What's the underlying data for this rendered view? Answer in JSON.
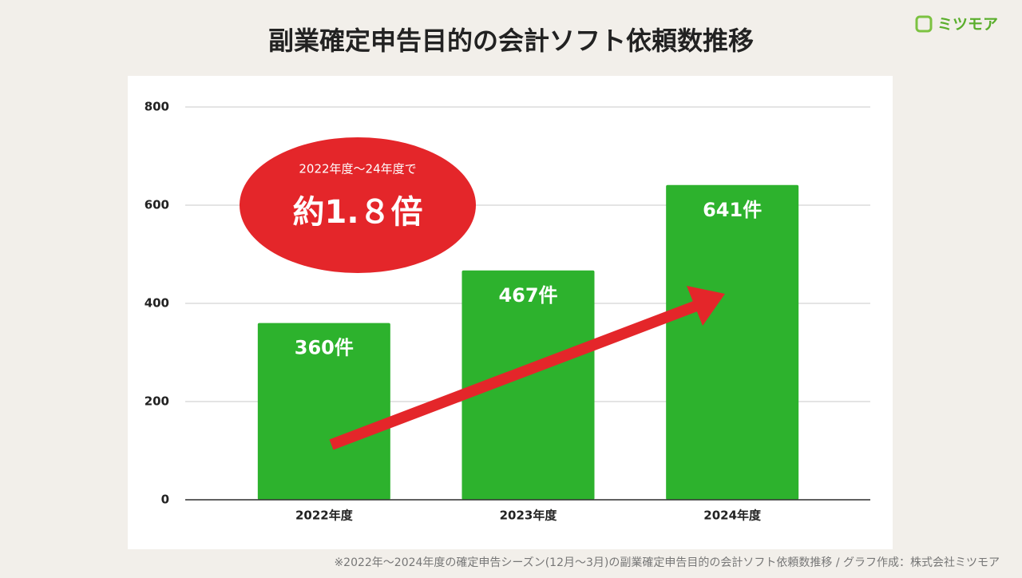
{
  "chart_data": {
    "type": "bar",
    "title": "副業確定申告目的の会計ソフト依頼数推移",
    "brand": "ミツモア",
    "annotation": {
      "line1": "2022年度〜24年度で",
      "line2": "約1.８倍"
    },
    "footnote": "※2022年〜2024年度の確定申告シーズン(12月〜3月)の副業確定申告目的の会計ソフト依頼数推移 / グラフ作成：株式会社ミツモア",
    "categories": [
      "2022年度",
      "2023年度",
      "2024年度"
    ],
    "values": [
      360,
      467,
      641
    ],
    "value_labels": [
      "360件",
      "467件",
      "641件"
    ],
    "color": "#2db22d",
    "ylim": [
      0,
      800
    ],
    "yticks": [
      0,
      200,
      400,
      600,
      800
    ],
    "grid": true
  }
}
